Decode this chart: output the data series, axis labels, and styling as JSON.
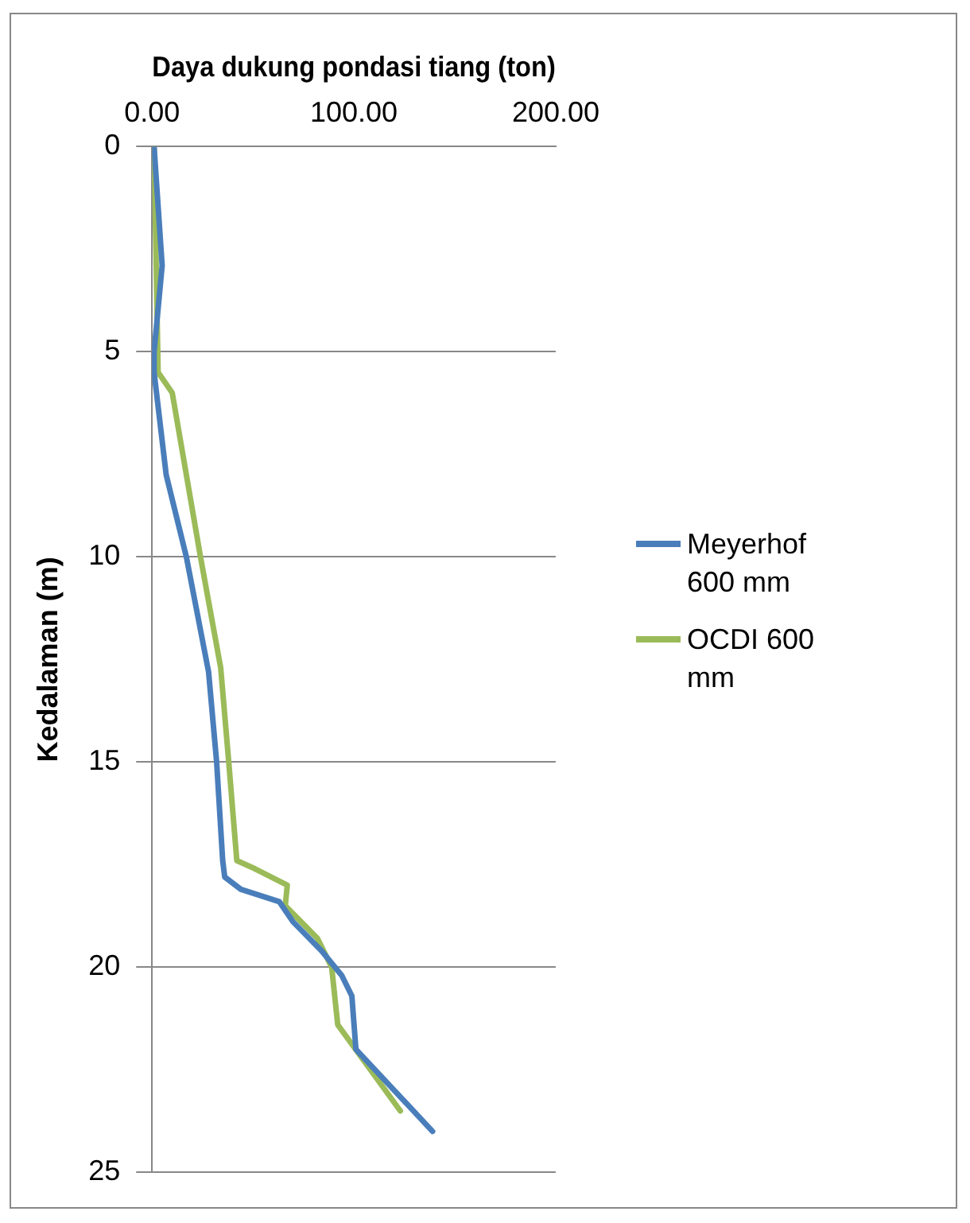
{
  "chart_data": {
    "type": "line",
    "xlabel": "Daya dukung pondasi tiang (ton)",
    "ylabel": "Kedalaman (m)",
    "xlim": [
      0,
      200
    ],
    "xticks": [
      {
        "value": 0,
        "label": "0.00"
      },
      {
        "value": 100,
        "label": "100.00"
      },
      {
        "value": 200,
        "label": "200.00"
      }
    ],
    "ylim": [
      25,
      0
    ],
    "yticks": [
      0,
      5,
      10,
      15,
      20,
      25
    ],
    "grid": "y",
    "legend": "right",
    "marker": "none",
    "line_style": "solid",
    "series": [
      {
        "name": "Meyerhof 600 mm",
        "color": "#4a7ebb",
        "x": [
          1,
          5,
          1,
          1,
          7,
          17,
          28,
          32,
          35,
          36,
          44,
          63,
          70,
          84,
          94,
          99,
          101,
          139
        ],
        "values": [
          0,
          2.9,
          5,
          5.5,
          8,
          10,
          12.8,
          15,
          17.4,
          17.8,
          18.1,
          18.4,
          18.9,
          19.6,
          20.2,
          20.7,
          22,
          24
        ]
      },
      {
        "name": "OCDI 600 mm",
        "color": "#9bbb59",
        "x": [
          1,
          3,
          10,
          24,
          34,
          38,
          42,
          51,
          67,
          66,
          82,
          89,
          92,
          123
        ],
        "values": [
          0,
          5.5,
          6,
          10,
          12.7,
          15,
          17.4,
          17.6,
          18,
          18.5,
          19.3,
          20,
          21.4,
          23.5
        ]
      }
    ]
  }
}
